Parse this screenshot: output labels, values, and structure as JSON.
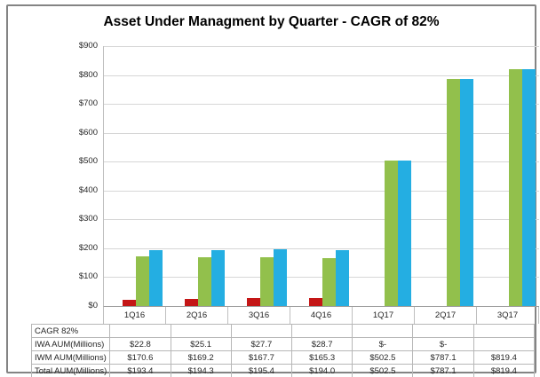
{
  "title": "Asset Under Managment by Quarter - CAGR of 82%",
  "chart_data": {
    "type": "bar",
    "title": "Asset Under Managment by Quarter - CAGR of 82%",
    "categories": [
      "1Q16",
      "2Q16",
      "3Q16",
      "4Q16",
      "1Q17",
      "2Q17",
      "3Q17"
    ],
    "series": [
      {
        "name": "IWA AUM(Millions)",
        "color": "#C41616",
        "values": [
          22.8,
          25.1,
          27.7,
          28.7,
          0,
          0,
          null
        ]
      },
      {
        "name": "IWM AUM(Millions)",
        "color": "#92C04C",
        "values": [
          170.6,
          169.2,
          167.7,
          165.3,
          502.5,
          787.1,
          819.4
        ]
      },
      {
        "name": "Total AUM(Millions)",
        "color": "#24AEE2",
        "values": [
          193.4,
          194.3,
          195.4,
          194.0,
          502.5,
          787.1,
          819.4
        ]
      }
    ],
    "ylim": [
      0,
      900
    ],
    "ytick_labels": [
      "$900",
      "$800",
      "$700",
      "$600",
      "$500",
      "$400",
      "$300",
      "$200",
      "$100",
      "$0"
    ],
    "grid": true,
    "legend_position": "none",
    "note": "data table shown below chart"
  },
  "table": {
    "columns": [
      "1Q16",
      "2Q16",
      "3Q16",
      "4Q16",
      "1Q17",
      "2Q17",
      "3Q17"
    ],
    "rows": [
      {
        "label": "CAGR 82%",
        "values": [
          "",
          "",
          "",
          "",
          "",
          "",
          ""
        ]
      },
      {
        "label": "IWA AUM(Millions)",
        "values": [
          "$22.8",
          "$25.1",
          "$27.7",
          "$28.7",
          "$-",
          "$-",
          ""
        ]
      },
      {
        "label": "IWM AUM(Millions)",
        "values": [
          "$170.6",
          "$169.2",
          "$167.7",
          "$165.3",
          "$502.5",
          "$787.1",
          "$819.4"
        ]
      },
      {
        "label": "Total AUM(Millions)",
        "values": [
          "$193.4",
          "$194.3",
          "$195.4",
          "$194.0",
          "$502.5",
          "$787.1",
          "$819.4"
        ]
      }
    ]
  },
  "colors": {
    "iwa_bar": "#C41616",
    "iwm_bar": "#92C04C",
    "total_bar": "#24AEE2",
    "gridline": "#D6D6D6",
    "axis_line": "#9E9E9E",
    "table_border": "#B7B7B7",
    "frame_border": "#848484"
  }
}
